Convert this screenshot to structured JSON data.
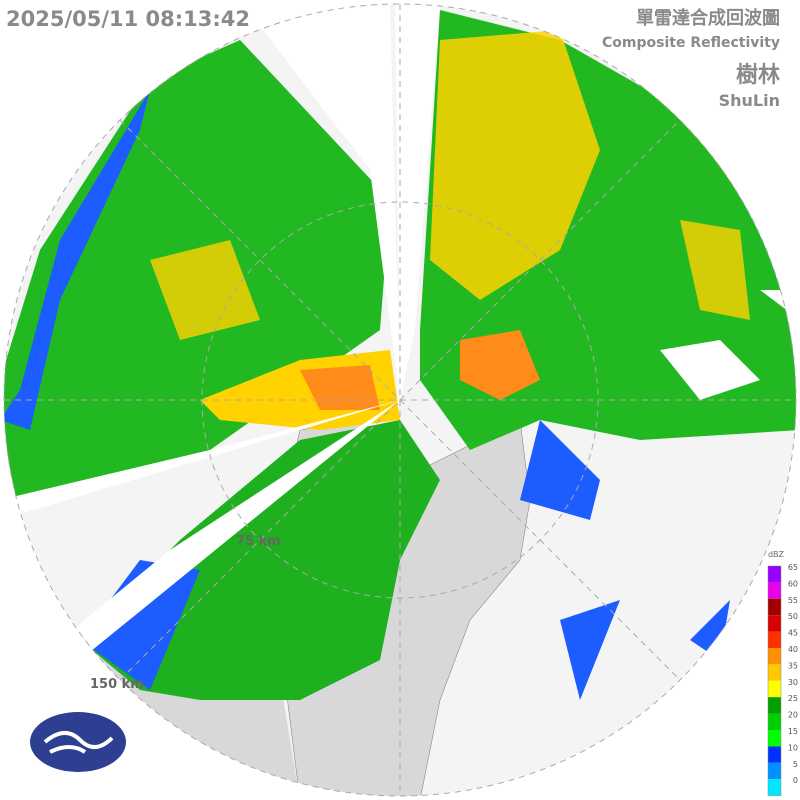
{
  "header": {
    "timestamp": "2025/05/11 08:13:42",
    "title": "單雷達合成回波圖",
    "subtitle": "Composite Reflectivity",
    "station": "樹林",
    "station_en": "ShuLin"
  },
  "range_labels": [
    "75 km",
    "150 km"
  ],
  "legend": {
    "unit": "dBZ",
    "ticks": [
      65,
      60,
      55,
      50,
      45,
      40,
      35,
      30,
      25,
      20,
      15,
      10,
      5,
      0
    ],
    "colors": [
      "#9600ff",
      "#e800e8",
      "#a00000",
      "#d80000",
      "#ff3000",
      "#ff9000",
      "#ffc800",
      "#ffff00",
      "#00a000",
      "#00d000",
      "#00ff00",
      "#0030ff",
      "#0090ff",
      "#00e8ff"
    ]
  }
}
